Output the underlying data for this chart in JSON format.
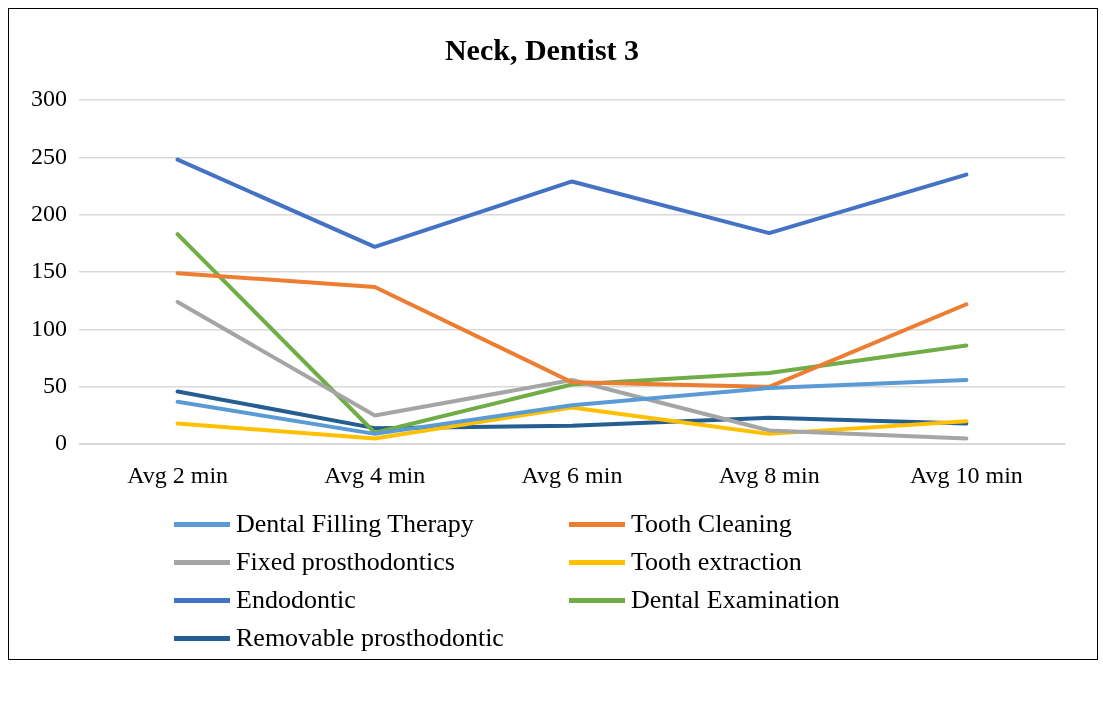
{
  "chart_data": {
    "type": "line",
    "title": "Neck, Dentist 3",
    "categories": [
      "Avg 2 min",
      "Avg 4 min",
      "Avg 6 min",
      "Avg 8 min",
      "Avg 10 min"
    ],
    "series": [
      {
        "name": "Dental Filling Therapy",
        "color": "#5b9bd5",
        "values": [
          37,
          9,
          34,
          49,
          56
        ]
      },
      {
        "name": "Tooth Cleaning",
        "color": "#ed7d31",
        "values": [
          149,
          137,
          54,
          50,
          122
        ]
      },
      {
        "name": "Fixed prosthodontics",
        "color": "#a5a5a5",
        "values": [
          124,
          25,
          56,
          12,
          5
        ]
      },
      {
        "name": "Tooth extraction",
        "color": "#ffc000",
        "values": [
          18,
          5,
          32,
          9,
          20
        ]
      },
      {
        "name": "Endodontic",
        "color": "#4472c4",
        "values": [
          248,
          172,
          229,
          184,
          235
        ]
      },
      {
        "name": "Dental Examination",
        "color": "#70ad47",
        "values": [
          183,
          10,
          52,
          62,
          86
        ]
      },
      {
        "name": "Removable prosthodontic",
        "color": "#255e91",
        "values": [
          46,
          14,
          16,
          23,
          18
        ]
      }
    ],
    "ylim": [
      0,
      300
    ],
    "yticks": [
      0,
      50,
      100,
      150,
      200,
      250,
      300
    ],
    "grid": "y",
    "legend": "bottom",
    "marker": "none",
    "line_style": "solid"
  }
}
